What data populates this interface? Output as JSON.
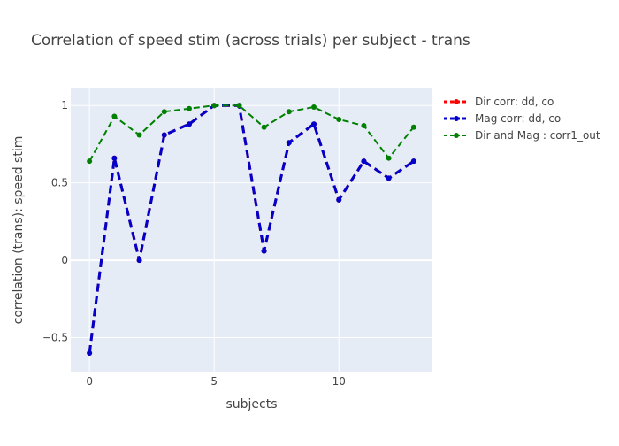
{
  "chart_data": {
    "type": "line",
    "title": "Correlation of speed stim (across trials) per subject - trans",
    "xlabel": "subjects",
    "ylabel": "correlation (trans): speed stim",
    "xlim": [
      -0.75,
      13.75
    ],
    "ylim": [
      -0.72,
      1.11
    ],
    "xticks": [
      0,
      5,
      10
    ],
    "xtick_labels": [
      "0",
      "5",
      "10"
    ],
    "yticks": [
      -0.5,
      0,
      0.5,
      1
    ],
    "ytick_labels": [
      "−0.5",
      "0",
      "0.5",
      "1"
    ],
    "grid": true,
    "legend_position": "top-right",
    "x": [
      0,
      1,
      2,
      3,
      4,
      5,
      6,
      7,
      8,
      9,
      10,
      11,
      12,
      13
    ],
    "series": [
      {
        "name": "Dir corr: dd, co",
        "color": "#ff0000",
        "values": [
          -0.6,
          0.66,
          0.0,
          0.81,
          0.88,
          1.0,
          1.0,
          0.06,
          0.76,
          0.88,
          0.39,
          0.64,
          0.53,
          0.64
        ]
      },
      {
        "name": "Mag corr: dd, co",
        "color": "#0000cc",
        "values": [
          -0.6,
          0.66,
          0.0,
          0.81,
          0.88,
          1.0,
          1.0,
          0.06,
          0.76,
          0.88,
          0.39,
          0.64,
          0.53,
          0.64
        ]
      },
      {
        "name": "Dir and Mag : corr1_out",
        "color": "#008000",
        "values": [
          0.64,
          0.93,
          0.81,
          0.96,
          0.98,
          1.0,
          1.0,
          0.86,
          0.96,
          0.99,
          0.91,
          0.87,
          0.66,
          0.86
        ]
      }
    ]
  }
}
